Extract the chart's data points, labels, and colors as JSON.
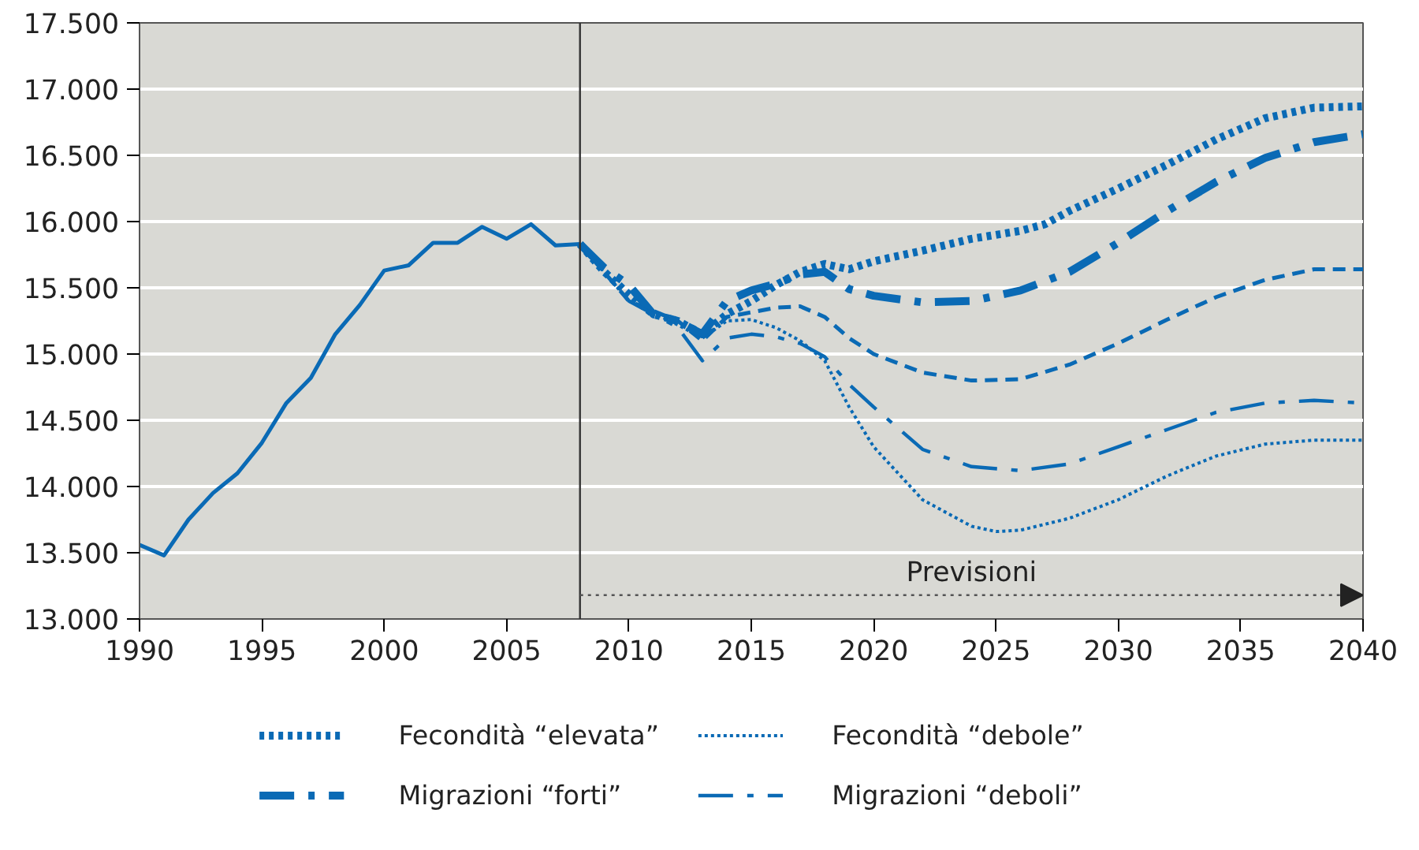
{
  "chart_data": {
    "type": "line",
    "xlim": [
      1990,
      2040
    ],
    "ylim": [
      13000,
      17500
    ],
    "xticks": [
      1990,
      1995,
      2000,
      2005,
      2010,
      2015,
      2020,
      2025,
      2030,
      2035,
      2040
    ],
    "yticks": [
      {
        "value": 13000,
        "label": "13.000"
      },
      {
        "value": 13500,
        "label": "13.500"
      },
      {
        "value": 14000,
        "label": "14.000"
      },
      {
        "value": 14500,
        "label": "14.500"
      },
      {
        "value": 15000,
        "label": "15.000"
      },
      {
        "value": 15500,
        "label": "15.500"
      },
      {
        "value": 16000,
        "label": "16.000"
      },
      {
        "value": 16500,
        "label": "16.500"
      },
      {
        "value": 17000,
        "label": "17.000"
      },
      {
        "value": 17500,
        "label": "17.500"
      }
    ],
    "grid": "y",
    "legend": "bottom",
    "ref_lines": [
      {
        "axis": "x",
        "value": 2008,
        "color": "#333333"
      }
    ],
    "annotations": [
      "Previsioni"
    ],
    "series": [
      {
        "color": "#0a6ab5",
        "line_style": "solid",
        "x": [
          1990,
          1991,
          1992,
          1993,
          1994,
          1995,
          1996,
          1997,
          1998,
          1999,
          2000,
          2001,
          2002,
          2003,
          2004,
          2005,
          2006,
          2007,
          2008
        ],
        "values": [
          13560,
          13480,
          13750,
          13950,
          14100,
          14330,
          14630,
          14820,
          15150,
          15370,
          15630,
          15670,
          15840,
          15840,
          15960,
          15870,
          15980,
          15820,
          15830
        ]
      },
      {
        "color": "#0a6ab5",
        "line_style": "dashed",
        "x": [
          2008,
          2010,
          2012,
          2013,
          2014,
          2016,
          2017,
          2018,
          2019,
          2020,
          2022,
          2024,
          2026,
          2028,
          2030,
          2032,
          2034,
          2036,
          2038,
          2040
        ],
        "values": [
          15830,
          15400,
          15250,
          15100,
          15280,
          15350,
          15360,
          15280,
          15120,
          15000,
          14860,
          14800,
          14810,
          14920,
          15080,
          15260,
          15430,
          15560,
          15640,
          15640
        ]
      },
      {
        "name": "Fecondità “elevata”",
        "color": "#0a6ab5",
        "line_style": "dotted",
        "x": [
          2008,
          2009,
          2010,
          2011,
          2012,
          2013,
          2014,
          2015,
          2016,
          2017,
          2018,
          2019,
          2020,
          2022,
          2024,
          2026,
          2027,
          2028,
          2030,
          2032,
          2034,
          2036,
          2038,
          2040
        ],
        "values": [
          15830,
          15620,
          15450,
          15300,
          15250,
          15150,
          15300,
          15400,
          15520,
          15620,
          15680,
          15640,
          15700,
          15780,
          15870,
          15930,
          15980,
          16080,
          16250,
          16430,
          16620,
          16780,
          16860,
          16870
        ]
      },
      {
        "name": "Fecondità “debole”",
        "color": "#0a6ab5",
        "line_style": "dotted",
        "x": [
          2008,
          2010,
          2012,
          2013,
          2014,
          2015,
          2016,
          2017,
          2018,
          2019,
          2020,
          2022,
          2024,
          2025,
          2026,
          2028,
          2030,
          2032,
          2034,
          2036,
          2038,
          2040
        ],
        "values": [
          15830,
          15400,
          15220,
          15120,
          15250,
          15260,
          15200,
          15100,
          14950,
          14600,
          14300,
          13900,
          13700,
          13660,
          13670,
          13760,
          13900,
          14080,
          14230,
          14320,
          14350,
          14350
        ]
      },
      {
        "name": "Migrazioni “forti”",
        "color": "#0a6ab5",
        "line_style": "dashdot",
        "x": [
          2008,
          2009,
          2010,
          2011,
          2012,
          2013,
          2014,
          2015,
          2016,
          2017,
          2018,
          2019,
          2020,
          2022,
          2024,
          2026,
          2028,
          2030,
          2032,
          2034,
          2036,
          2038,
          2040
        ],
        "values": [
          15830,
          15650,
          15520,
          15300,
          15250,
          15150,
          15400,
          15480,
          15530,
          15600,
          15620,
          15490,
          15440,
          15390,
          15400,
          15480,
          15620,
          15840,
          16080,
          16300,
          16480,
          16600,
          16660
        ]
      },
      {
        "name": "Migrazioni “deboli”",
        "color": "#0a6ab5",
        "line_style": "dashdot",
        "x": [
          2008,
          2010,
          2012,
          2013,
          2014,
          2015,
          2016,
          2017,
          2018,
          2019,
          2020,
          2022,
          2024,
          2026,
          2028,
          2030,
          2032,
          2034,
          2036,
          2038,
          2040
        ],
        "values": [
          15830,
          15400,
          15200,
          14950,
          15120,
          15150,
          15130,
          15080,
          14980,
          14770,
          14600,
          14280,
          14150,
          14120,
          14170,
          14300,
          14430,
          14560,
          14630,
          14650,
          14630
        ]
      }
    ]
  }
}
